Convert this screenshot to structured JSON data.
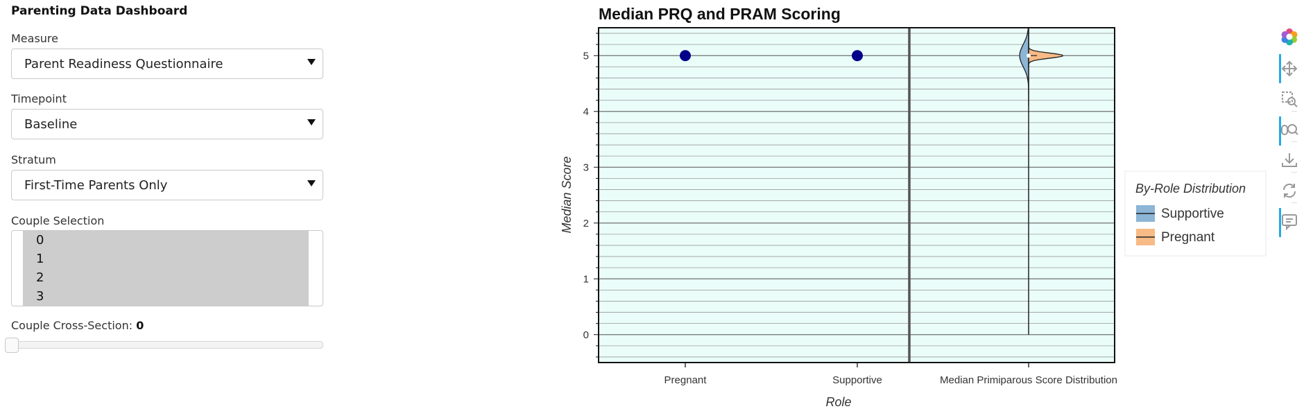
{
  "sidebar": {
    "title": "Parenting Data Dashboard",
    "measure": {
      "label": "Measure",
      "value": "Parent Readiness Questionnaire"
    },
    "timepoint": {
      "label": "Timepoint",
      "value": "Baseline"
    },
    "stratum": {
      "label": "Stratum",
      "value": "First-Time Parents Only"
    },
    "couples": {
      "label": "Couple Selection",
      "options": [
        "0",
        "1",
        "2",
        "3"
      ]
    },
    "cross_section": {
      "label": "Couple Cross-Section: ",
      "value": "0",
      "fraction": 0
    }
  },
  "toolbar": {
    "tools": [
      "bokeh-logo-icon",
      "pan-icon",
      "box-zoom-icon",
      "wheel-zoom-icon",
      "save-icon",
      "reset-icon",
      "hover-icon"
    ]
  },
  "chart_data": {
    "type": "scatter",
    "title": "Median PRQ and PRAM Scoring",
    "xlabel": "Role",
    "ylabel": "Median Score",
    "categories": [
      "Pregnant",
      "Supportive",
      "Median Primiparous Score Distribution"
    ],
    "points": [
      {
        "category": "Pregnant",
        "y": 5
      },
      {
        "category": "Supportive",
        "y": 5
      }
    ],
    "point_color": "#00008b",
    "ylim": [
      -0.5,
      5.5
    ],
    "yticks": [
      0,
      1,
      2,
      3,
      4,
      5
    ],
    "grid": true,
    "background": "#eafdf8",
    "legend": {
      "title": "By-Role Distribution",
      "placement": "right",
      "items": [
        {
          "name": "Supportive",
          "color": "#8cb5d6"
        },
        {
          "name": "Pregnant",
          "color": "#f8ba86"
        }
      ]
    },
    "violin": {
      "category": "Median Primiparous Score Distribution",
      "mode": 5,
      "range": [
        0,
        5.5
      ]
    }
  }
}
